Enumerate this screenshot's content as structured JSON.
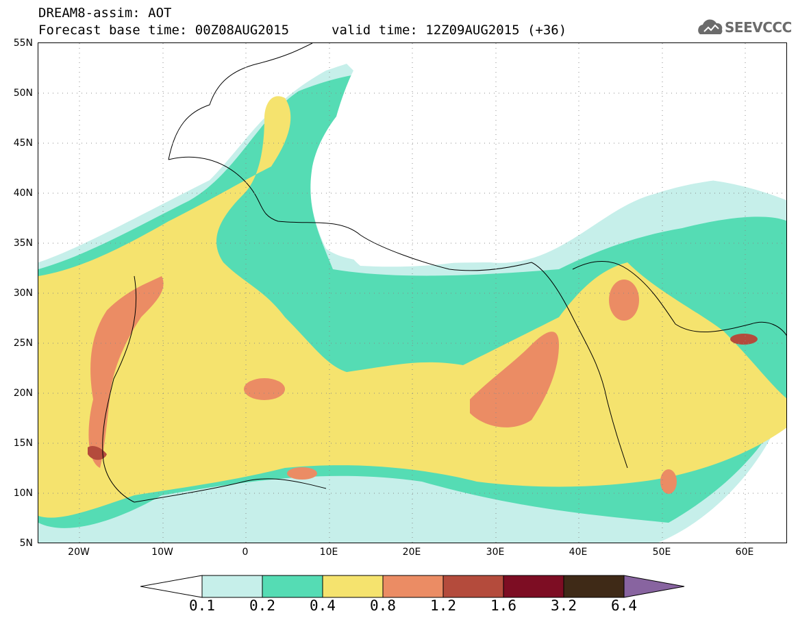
{
  "header": {
    "title": "DREAM8-assim: AOT",
    "base_time": "Forecast base time: 00Z08AUG2015",
    "valid_time": "valid time: 12Z09AUG2015 (+36)",
    "logo_text": "SEEVCCC",
    "logo_icon": "cloud-icon"
  },
  "map": {
    "lat_labels": [
      "55N",
      "50N",
      "45N",
      "40N",
      "35N",
      "30N",
      "25N",
      "20N",
      "15N",
      "10N",
      "5N"
    ],
    "lon_labels": [
      "20W",
      "10W",
      "0",
      "10E",
      "20E",
      "30E",
      "40E",
      "50E",
      "60E"
    ],
    "extent": {
      "lon_min": -25,
      "lon_max": 65,
      "lat_min": 5,
      "lat_max": 55
    }
  },
  "legend": {
    "levels": [
      "0.1",
      "0.2",
      "0.4",
      "0.8",
      "1.2",
      "1.6",
      "3.2",
      "6.4"
    ],
    "colors": [
      "#c6efea",
      "#55dcb4",
      "#f5e36e",
      "#eb8c64",
      "#b44b3c",
      "#7d0d23",
      "#3f2a17",
      "#8864a0"
    ],
    "under_color": "#ffffff"
  }
}
